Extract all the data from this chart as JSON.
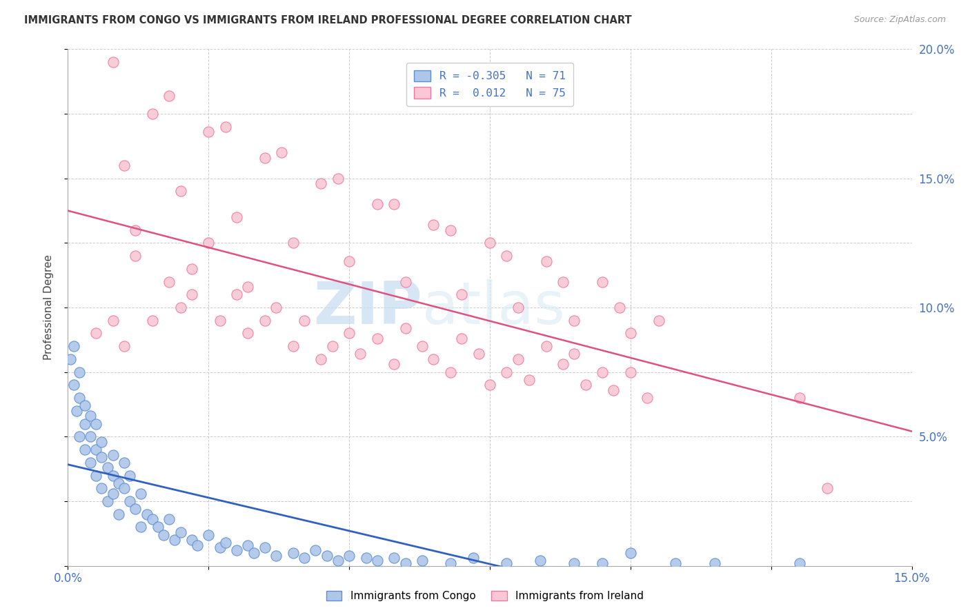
{
  "title": "IMMIGRANTS FROM CONGO VS IMMIGRANTS FROM IRELAND PROFESSIONAL DEGREE CORRELATION CHART",
  "source": "Source: ZipAtlas.com",
  "ylabel_label": "Professional Degree",
  "xlim": [
    0.0,
    0.15
  ],
  "ylim": [
    0.0,
    0.2
  ],
  "congo_R": -0.305,
  "congo_N": 71,
  "ireland_R": 0.012,
  "ireland_N": 75,
  "legend_label_congo": "Immigrants from Congo",
  "legend_label_ireland": "Immigrants from Ireland",
  "congo_fill_color": "#AEC6E8",
  "ireland_fill_color": "#F9C8D4",
  "congo_edge_color": "#5B8ED6",
  "ireland_edge_color": "#F078A0",
  "congo_line_color": "#3060C0",
  "ireland_line_color": "#E05080",
  "watermark_zip": "ZIP",
  "watermark_atlas": "atlas",
  "congo_x": [
    0.0005,
    0.001,
    0.001,
    0.0015,
    0.002,
    0.002,
    0.002,
    0.003,
    0.003,
    0.003,
    0.004,
    0.004,
    0.004,
    0.005,
    0.005,
    0.005,
    0.006,
    0.006,
    0.006,
    0.007,
    0.007,
    0.008,
    0.008,
    0.008,
    0.009,
    0.009,
    0.01,
    0.01,
    0.011,
    0.011,
    0.012,
    0.013,
    0.013,
    0.014,
    0.015,
    0.016,
    0.017,
    0.018,
    0.019,
    0.02,
    0.022,
    0.023,
    0.025,
    0.027,
    0.028,
    0.03,
    0.032,
    0.033,
    0.035,
    0.037,
    0.04,
    0.042,
    0.044,
    0.046,
    0.048,
    0.05,
    0.053,
    0.055,
    0.058,
    0.06,
    0.063,
    0.068,
    0.072,
    0.078,
    0.084,
    0.09,
    0.095,
    0.1,
    0.108,
    0.115,
    0.13
  ],
  "congo_y": [
    0.08,
    0.085,
    0.07,
    0.06,
    0.065,
    0.075,
    0.05,
    0.055,
    0.045,
    0.062,
    0.05,
    0.04,
    0.058,
    0.045,
    0.035,
    0.055,
    0.042,
    0.03,
    0.048,
    0.038,
    0.025,
    0.035,
    0.028,
    0.043,
    0.032,
    0.02,
    0.03,
    0.04,
    0.025,
    0.035,
    0.022,
    0.028,
    0.015,
    0.02,
    0.018,
    0.015,
    0.012,
    0.018,
    0.01,
    0.013,
    0.01,
    0.008,
    0.012,
    0.007,
    0.009,
    0.006,
    0.008,
    0.005,
    0.007,
    0.004,
    0.005,
    0.003,
    0.006,
    0.004,
    0.002,
    0.004,
    0.003,
    0.002,
    0.003,
    0.001,
    0.002,
    0.001,
    0.003,
    0.001,
    0.002,
    0.001,
    0.001,
    0.005,
    0.001,
    0.001,
    0.001
  ],
  "ireland_x": [
    0.005,
    0.008,
    0.01,
    0.012,
    0.015,
    0.018,
    0.02,
    0.022,
    0.025,
    0.027,
    0.03,
    0.032,
    0.035,
    0.037,
    0.04,
    0.042,
    0.045,
    0.047,
    0.05,
    0.052,
    0.055,
    0.058,
    0.06,
    0.063,
    0.065,
    0.068,
    0.07,
    0.073,
    0.075,
    0.078,
    0.08,
    0.082,
    0.085,
    0.088,
    0.09,
    0.092,
    0.095,
    0.097,
    0.1,
    0.103,
    0.01,
    0.02,
    0.03,
    0.04,
    0.05,
    0.06,
    0.07,
    0.08,
    0.09,
    0.1,
    0.015,
    0.025,
    0.035,
    0.045,
    0.055,
    0.065,
    0.075,
    0.085,
    0.095,
    0.105,
    0.008,
    0.018,
    0.028,
    0.038,
    0.048,
    0.058,
    0.068,
    0.078,
    0.088,
    0.098,
    0.012,
    0.022,
    0.032,
    0.13,
    0.135
  ],
  "ireland_y": [
    0.09,
    0.095,
    0.085,
    0.13,
    0.095,
    0.11,
    0.1,
    0.105,
    0.125,
    0.095,
    0.105,
    0.09,
    0.095,
    0.1,
    0.085,
    0.095,
    0.08,
    0.085,
    0.09,
    0.082,
    0.088,
    0.078,
    0.092,
    0.085,
    0.08,
    0.075,
    0.088,
    0.082,
    0.07,
    0.075,
    0.08,
    0.072,
    0.085,
    0.078,
    0.082,
    0.07,
    0.075,
    0.068,
    0.075,
    0.065,
    0.155,
    0.145,
    0.135,
    0.125,
    0.118,
    0.11,
    0.105,
    0.1,
    0.095,
    0.09,
    0.175,
    0.168,
    0.158,
    0.148,
    0.14,
    0.132,
    0.125,
    0.118,
    0.11,
    0.095,
    0.195,
    0.182,
    0.17,
    0.16,
    0.15,
    0.14,
    0.13,
    0.12,
    0.11,
    0.1,
    0.12,
    0.115,
    0.108,
    0.065,
    0.03
  ]
}
